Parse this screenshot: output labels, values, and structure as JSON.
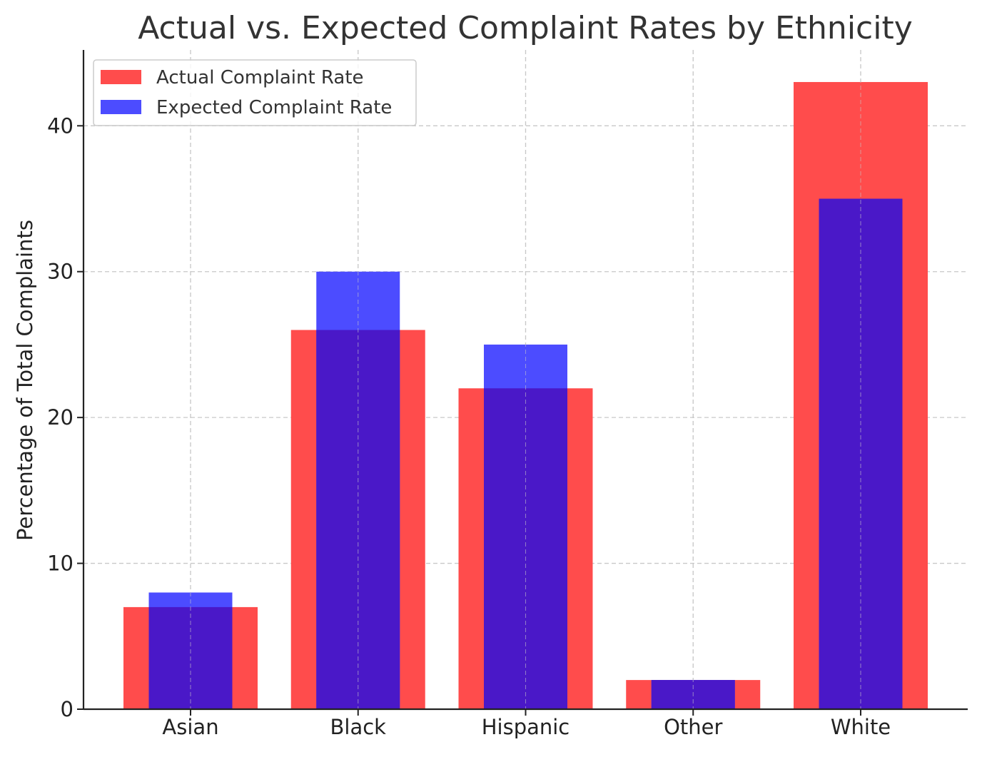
{
  "chart_data": {
    "type": "bar",
    "title": "Actual vs. Expected Complaint Rates by Ethnicity",
    "xlabel": "",
    "ylabel": "Percentage of Total Complaints",
    "categories": [
      "Asian",
      "Black",
      "Hispanic",
      "Other",
      "White"
    ],
    "series": [
      {
        "name": "Actual Complaint Rate",
        "values": [
          7,
          26,
          22,
          2,
          43
        ],
        "color": "#ff4c4c"
      },
      {
        "name": "Expected Complaint Rate",
        "values": [
          8,
          30,
          25,
          2,
          35
        ],
        "color": "#4c4cff"
      }
    ],
    "overlap_color": "#4a18c8",
    "ylim": [
      0,
      45.2
    ],
    "yticks": [
      0,
      10,
      20,
      30,
      40
    ],
    "grid": true,
    "legend_position": "top-left"
  }
}
